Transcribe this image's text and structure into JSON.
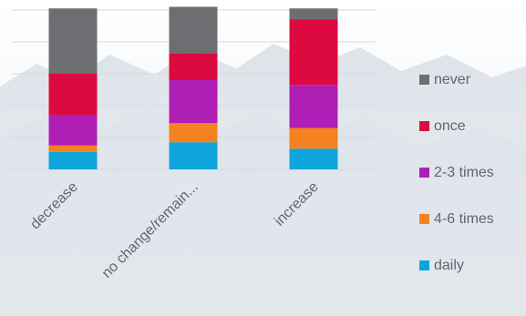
{
  "chart_data": {
    "type": "bar",
    "stacked": true,
    "categories": [
      "decrease",
      "no change/remain...",
      "increase"
    ],
    "series": [
      {
        "name": "daily",
        "color": "#0ea5dc",
        "values": [
          11,
          17,
          13
        ]
      },
      {
        "name": "4-6 times",
        "color": "#f58220",
        "values": [
          4,
          12,
          13
        ]
      },
      {
        "name": "2-3 times",
        "color": "#b01fb5",
        "values": [
          19,
          27,
          27
        ]
      },
      {
        "name": "once",
        "color": "#dc0a40",
        "values": [
          26,
          17,
          41
        ]
      },
      {
        "name": "never",
        "color": "#6d6e71",
        "values": [
          41,
          29,
          7
        ]
      }
    ],
    "ylim": [
      0,
      100
    ],
    "grid": true,
    "legend_position": "right",
    "legend_order": [
      "never",
      "once",
      "2-3 times",
      "4-6 times",
      "daily"
    ],
    "title": "",
    "xlabel": "",
    "ylabel": ""
  }
}
